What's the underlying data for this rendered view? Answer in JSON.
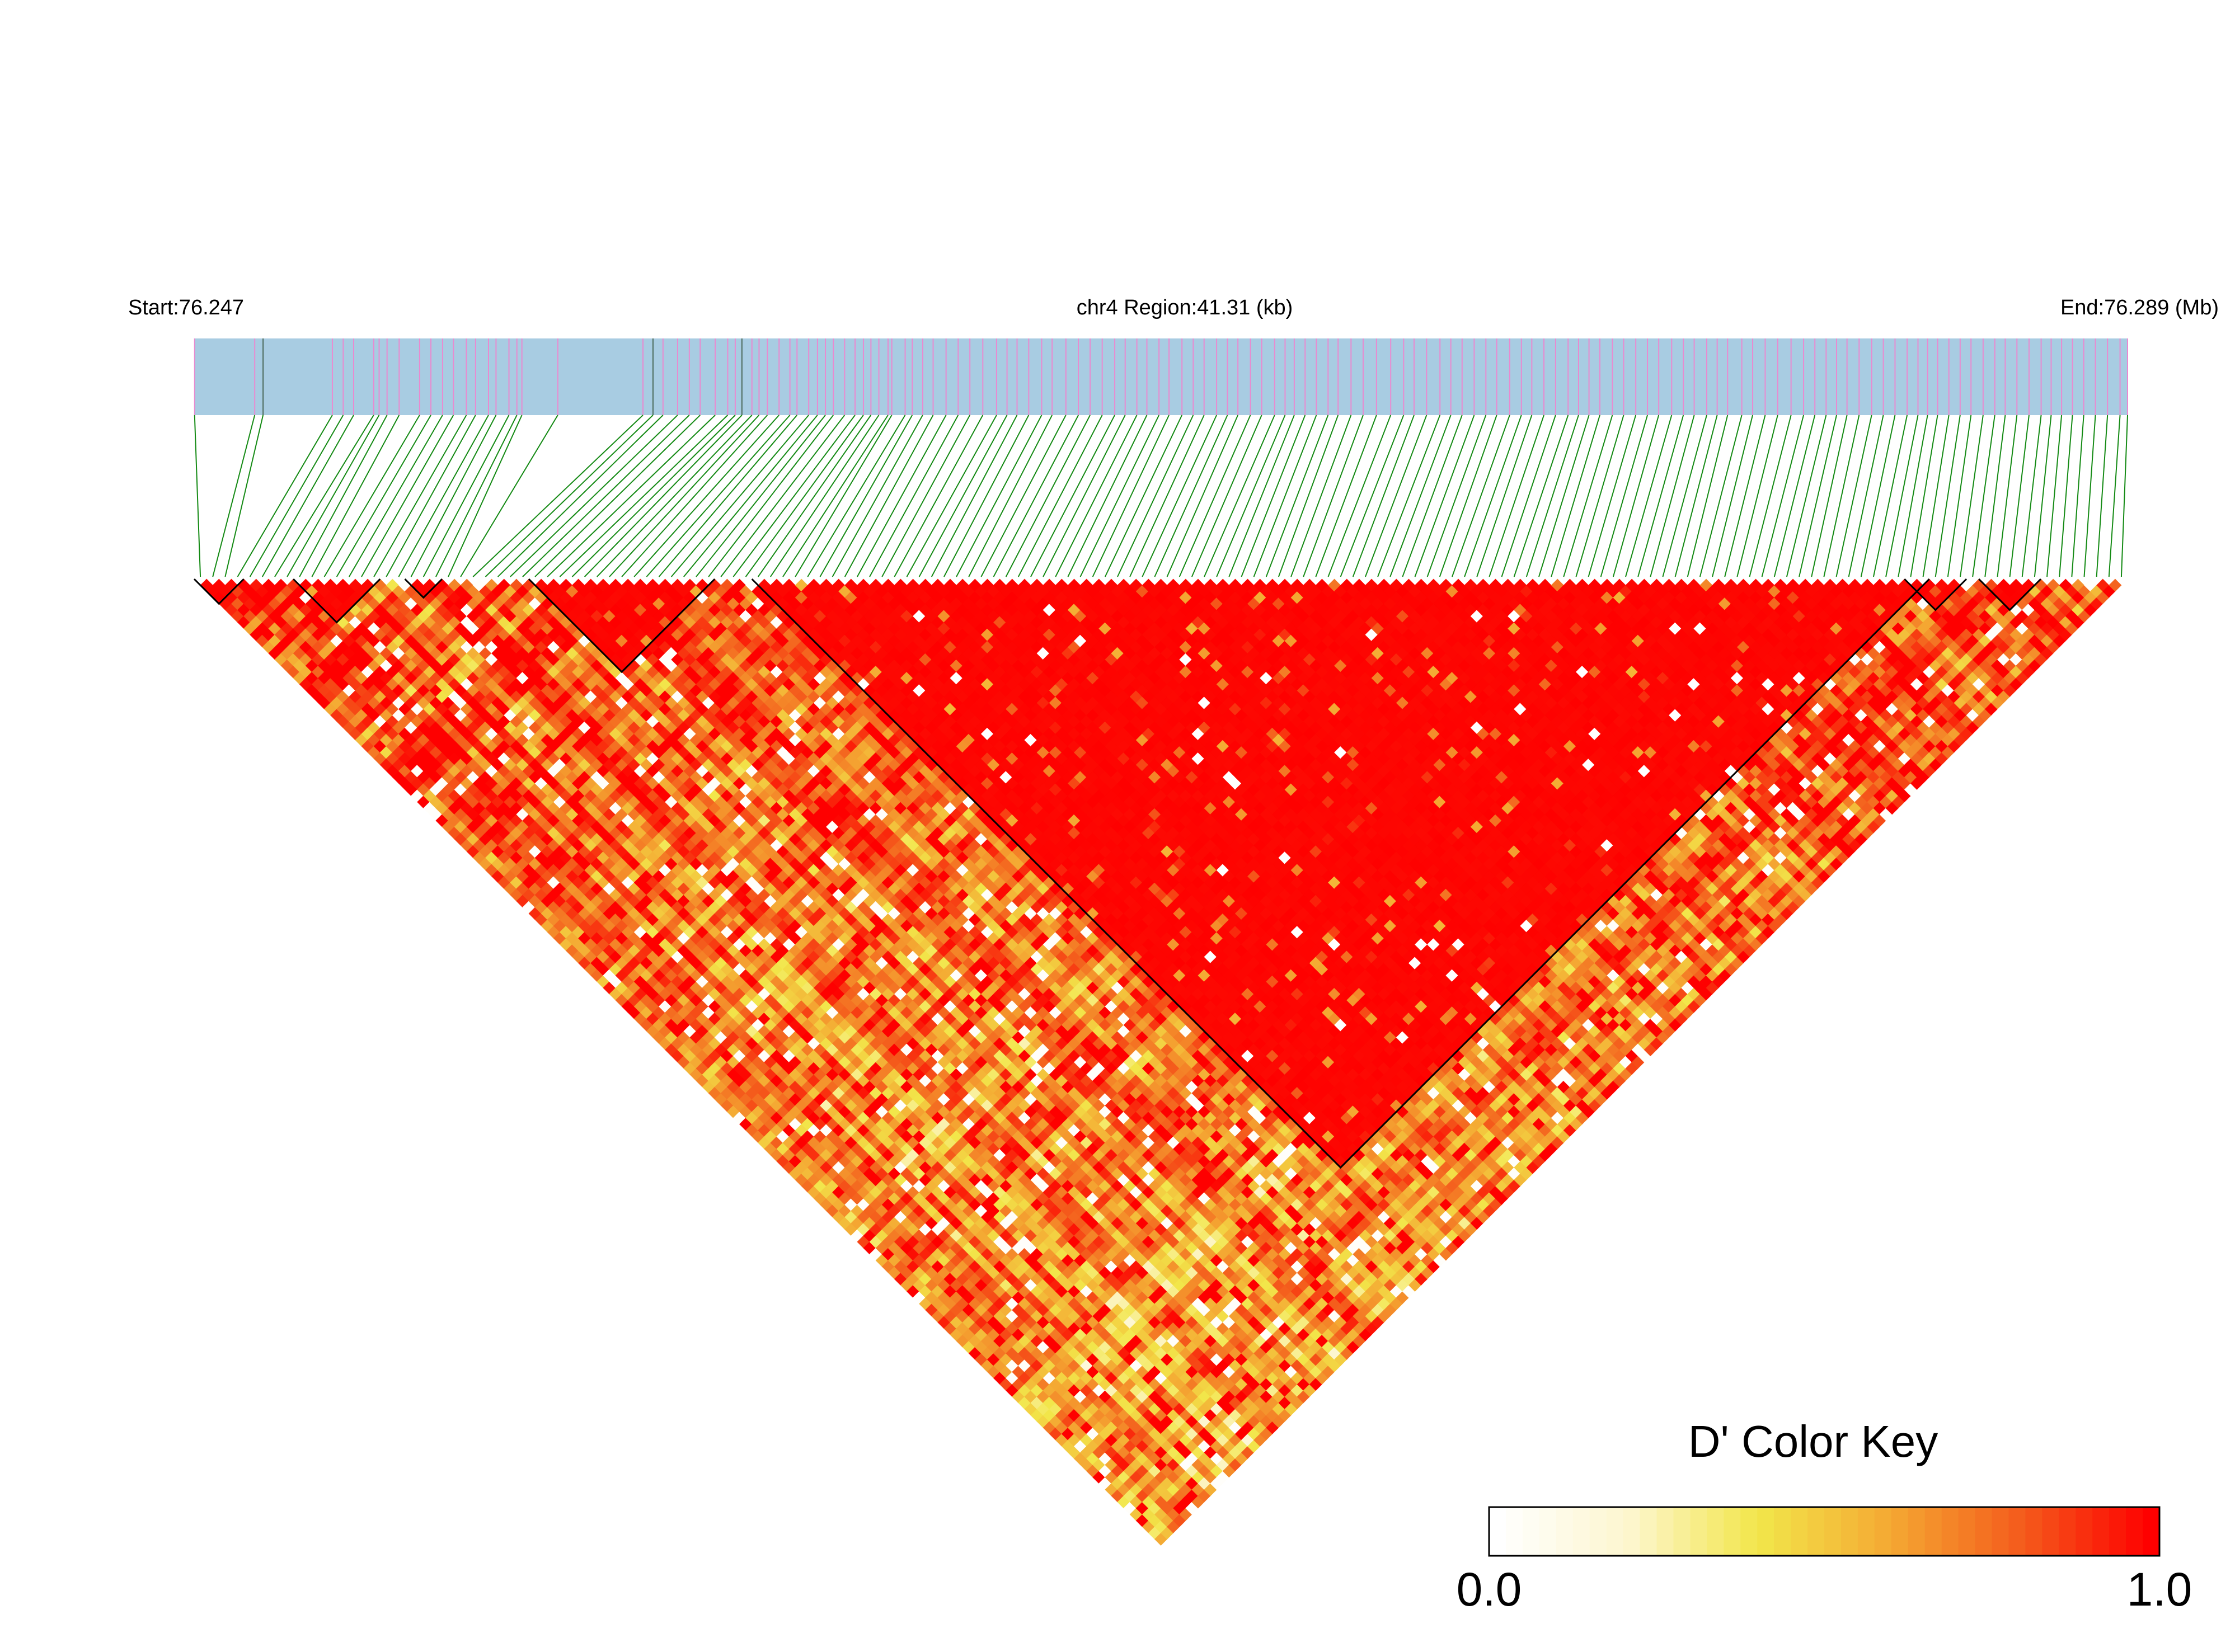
{
  "chart_data": {
    "type": "heatmap",
    "subtype": "linkage-disequilibrium-triangle",
    "header": {
      "start_label": "Start:76.247",
      "region_label": "chr4 Region:41.31 (kb)",
      "end_label": "End:76.289 (Mb)"
    },
    "metric": "D'",
    "region": {
      "chromosome": "chr4",
      "start_mb": 76.247,
      "end_mb": 76.289,
      "length_kb": 41.31
    },
    "snp_count": 156,
    "snp_positions_mb": [
      76.24701,
      76.24845,
      76.24865,
      76.25031,
      76.25057,
      76.25082,
      76.2513,
      76.25143,
      76.25162,
      76.25191,
      76.2524,
      76.25267,
      76.25295,
      76.25321,
      76.25352,
      76.25374,
      76.25405,
      76.25423,
      76.25454,
      76.25473,
      76.25485,
      76.25571,
      76.25775,
      76.25799,
      76.25823,
      76.25858,
      76.25886,
      76.25912,
      76.25948,
      76.25978,
      76.25996,
      76.26012,
      76.26036,
      76.26053,
      76.26073,
      76.26101,
      76.26127,
      76.26144,
      76.26172,
      76.26193,
      76.26212,
      76.26231,
      76.26258,
      76.26283,
      76.26303,
      76.26321,
      76.2634,
      76.26362,
      76.26371,
      76.26403,
      76.2642,
      76.26445,
      76.2647,
      76.26501,
      76.2653,
      76.26558,
      76.26589,
      76.26622,
      76.26647,
      76.26671,
      76.26699,
      76.2673,
      76.26755,
      76.26788,
      76.26818,
      76.26846,
      76.26875,
      76.26905,
      76.2693,
      76.26958,
      76.26982,
      76.27011,
      76.27035,
      76.27066,
      76.27093,
      76.27119,
      76.27149,
      76.27175,
      76.272,
      76.2723,
      76.27257,
      76.27288,
      76.27313,
      76.27335,
      76.27361,
      76.27388,
      76.27416,
      76.2744,
      76.27471,
      76.275,
      76.27532,
      76.27566,
      76.27597,
      76.27622,
      76.27652,
      76.27684,
      76.2771,
      76.27737,
      76.27766,
      76.27794,
      76.2782,
      76.27851,
      76.27879,
      76.27904,
      76.27933,
      76.27961,
      76.27991,
      76.28016,
      76.28041,
      76.28067,
      76.28097,
      76.28124,
      76.28153,
      76.28181,
      76.28208,
      76.28239,
      76.28267,
      76.28293,
      76.28323,
      76.28348,
      76.28373,
      76.28407,
      76.28433,
      76.28463,
      76.28493,
      76.28525,
      76.28555,
      76.28582,
      76.28609,
      76.28634,
      76.28659,
      76.28688,
      76.28718,
      76.28746,
      76.28774,
      76.28803,
      76.28829,
      76.28852,
      76.28876,
      76.28903,
      76.2893,
      76.28956,
      76.28985,
      76.29013,
      76.29038,
      76.29066,
      76.29095,
      76.29124,
      76.29148,
      76.29173,
      76.29199,
      76.29226,
      76.29254,
      76.29283,
      76.29313,
      76.29331
    ],
    "ld_blocks": [
      {
        "first_snp": 0,
        "last_snp": 3
      },
      {
        "first_snp": 8,
        "last_snp": 14
      },
      {
        "first_snp": 17,
        "last_snp": 19
      },
      {
        "first_snp": 27,
        "last_snp": 41
      },
      {
        "first_snp": 45,
        "last_snp": 139
      },
      {
        "first_snp": 138,
        "last_snp": 142
      },
      {
        "first_snp": 144,
        "last_snp": 148
      }
    ],
    "ld_summary": {
      "inside_blocks_typical_d_prime": 0.98,
      "near_diagonal_typical_d_prime": 0.85,
      "far_from_diagonal_typical_d_prime": 0.55,
      "generation_seed": 7
    },
    "colors": {
      "region_bar": "#a8cce2",
      "snp_tick": "#e98ad0",
      "snp_tick_dark": "#4d6b5d",
      "connector": "#148a14",
      "block_outline": "#000000",
      "scale": [
        "#ffffff",
        "#fdf6cf",
        "#f2e64a",
        "#f4a933",
        "#f45c1c",
        "#fe0000"
      ]
    },
    "color_key": {
      "title": "D' Color Key",
      "min_label": "0.0",
      "max_label": "1.0",
      "min": 0.0,
      "max": 1.0
    }
  }
}
